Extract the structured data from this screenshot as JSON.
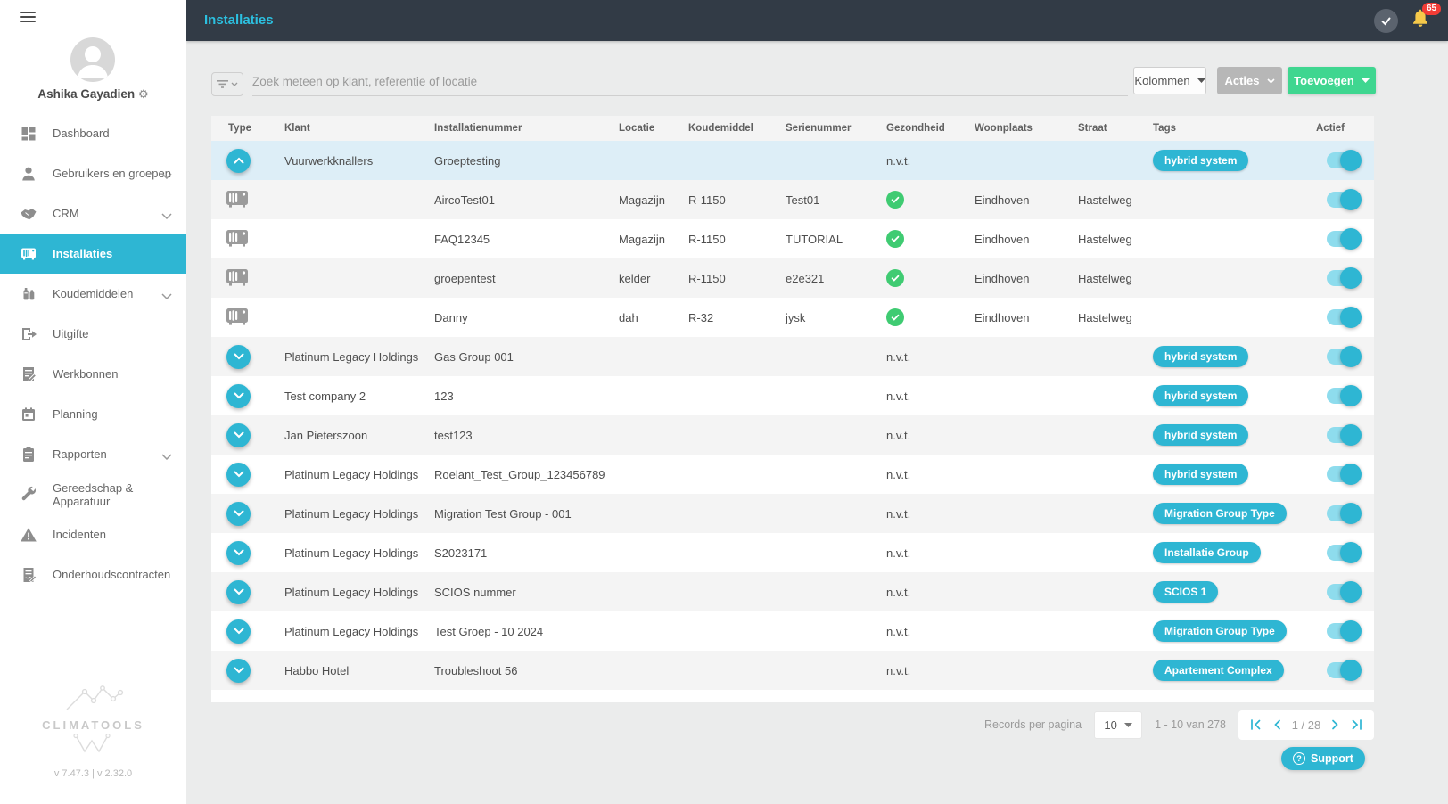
{
  "app": {
    "title": "Installaties",
    "notification_count": "65",
    "user": {
      "name": "Ashika Gayadien"
    },
    "logo_text": "CLIMATOOLS",
    "versions": "v 7.47.3   | v 2.32.0"
  },
  "sidebar": {
    "items": [
      {
        "label": "Dashboard",
        "icon": "dashboard-icon",
        "chevron": false,
        "active": false
      },
      {
        "label": "Gebruikers en groepen",
        "icon": "users-icon",
        "chevron": true,
        "active": false
      },
      {
        "label": "CRM",
        "icon": "handshake-icon",
        "chevron": true,
        "active": false
      },
      {
        "label": "Installaties",
        "icon": "ac-unit-icon",
        "chevron": false,
        "active": true
      },
      {
        "label": "Koudemiddelen",
        "icon": "refrigerant-bottles-icon",
        "chevron": true,
        "active": false
      },
      {
        "label": "Uitgifte",
        "icon": "export-icon",
        "chevron": false,
        "active": false
      },
      {
        "label": "Werkbonnen",
        "icon": "work-order-icon",
        "chevron": false,
        "active": false
      },
      {
        "label": "Planning",
        "icon": "calendar-icon",
        "chevron": false,
        "active": false
      },
      {
        "label": "Rapporten",
        "icon": "report-icon",
        "chevron": true,
        "active": false
      },
      {
        "label": "Gereedschap & Apparatuur",
        "icon": "wrench-icon",
        "chevron": false,
        "active": false
      },
      {
        "label": "Incidenten",
        "icon": "warning-icon",
        "chevron": false,
        "active": false
      },
      {
        "label": "Onderhoudscontracten",
        "icon": "contract-icon",
        "chevron": false,
        "active": false
      }
    ]
  },
  "toolbar": {
    "search_placeholder": "Zoek meteen op klant, referentie of locatie",
    "kolommen_label": "Kolommen",
    "acties_label": "Acties",
    "toevoegen_label": "Toevoegen"
  },
  "table": {
    "columns": [
      "Type",
      "Klant",
      "Installatienummer",
      "Locatie",
      "Koudemiddel",
      "Serienummer",
      "Gezondheid",
      "Woonplaats",
      "Straat",
      "Tags",
      "Actief"
    ],
    "rows": [
      {
        "type": "group-expanded",
        "klant": "Vuurwerkknallers",
        "installatienummer": "Groeptesting",
        "locatie": "",
        "koudemiddel": "",
        "serienummer": "",
        "gezondheid": "n.v.t.",
        "woonplaats": "",
        "straat": "",
        "tags": [
          "hybrid system"
        ],
        "actief": true,
        "highlight": true
      },
      {
        "type": "unit",
        "klant": "",
        "installatienummer": "AircoTest01",
        "locatie": "Magazijn",
        "koudemiddel": "R-1150",
        "serienummer": "Test01",
        "gezondheid": "ok",
        "woonplaats": "Eindhoven",
        "straat": "Hastelweg",
        "tags": [],
        "actief": true
      },
      {
        "type": "unit",
        "klant": "",
        "installatienummer": "FAQ12345",
        "locatie": "Magazijn",
        "koudemiddel": "R-1150",
        "serienummer": "TUTORIAL",
        "gezondheid": "ok",
        "woonplaats": "Eindhoven",
        "straat": "Hastelweg",
        "tags": [],
        "actief": true
      },
      {
        "type": "unit",
        "klant": "",
        "installatienummer": "groepentest",
        "locatie": "kelder",
        "koudemiddel": "R-1150",
        "serienummer": "e2e321",
        "gezondheid": "ok",
        "woonplaats": "Eindhoven",
        "straat": "Hastelweg",
        "tags": [],
        "actief": true
      },
      {
        "type": "unit",
        "klant": "",
        "installatienummer": "Danny",
        "locatie": "dah",
        "koudemiddel": "R-32",
        "serienummer": "jysk",
        "gezondheid": "ok",
        "woonplaats": "Eindhoven",
        "straat": "Hastelweg",
        "tags": [],
        "actief": true
      },
      {
        "type": "group-collapsed",
        "klant": "Platinum Legacy Holdings",
        "installatienummer": "Gas Group 001",
        "locatie": "",
        "koudemiddel": "",
        "serienummer": "",
        "gezondheid": "n.v.t.",
        "woonplaats": "",
        "straat": "",
        "tags": [
          "hybrid system"
        ],
        "actief": true
      },
      {
        "type": "group-collapsed",
        "klant": "Test company 2",
        "installatienummer": "123",
        "locatie": "",
        "koudemiddel": "",
        "serienummer": "",
        "gezondheid": "n.v.t.",
        "woonplaats": "",
        "straat": "",
        "tags": [
          "hybrid system"
        ],
        "actief": true
      },
      {
        "type": "group-collapsed",
        "klant": "Jan Pieterszoon",
        "installatienummer": "test123",
        "locatie": "",
        "koudemiddel": "",
        "serienummer": "",
        "gezondheid": "n.v.t.",
        "woonplaats": "",
        "straat": "",
        "tags": [
          "hybrid system"
        ],
        "actief": true
      },
      {
        "type": "group-collapsed",
        "klant": "Platinum Legacy Holdings",
        "installatienummer": "Roelant_Test_Group_123456789",
        "locatie": "",
        "koudemiddel": "",
        "serienummer": "",
        "gezondheid": "n.v.t.",
        "woonplaats": "",
        "straat": "",
        "tags": [
          "hybrid system"
        ],
        "actief": true
      },
      {
        "type": "group-collapsed",
        "klant": "Platinum Legacy Holdings",
        "installatienummer": "Migration Test Group - 001",
        "locatie": "",
        "koudemiddel": "",
        "serienummer": "",
        "gezondheid": "n.v.t.",
        "woonplaats": "",
        "straat": "",
        "tags": [
          "Migration Group Type"
        ],
        "actief": true
      },
      {
        "type": "group-collapsed",
        "klant": "Platinum Legacy Holdings",
        "installatienummer": "S2023171",
        "locatie": "",
        "koudemiddel": "",
        "serienummer": "",
        "gezondheid": "n.v.t.",
        "woonplaats": "",
        "straat": "",
        "tags": [
          "Installatie Group"
        ],
        "actief": true
      },
      {
        "type": "group-collapsed",
        "klant": "Platinum Legacy Holdings",
        "installatienummer": "SCIOS nummer",
        "locatie": "",
        "koudemiddel": "",
        "serienummer": "",
        "gezondheid": "n.v.t.",
        "woonplaats": "",
        "straat": "",
        "tags": [
          "SCIOS 1"
        ],
        "actief": true
      },
      {
        "type": "group-collapsed",
        "klant": "Platinum Legacy Holdings",
        "installatienummer": "Test Groep - 10 2024",
        "locatie": "",
        "koudemiddel": "",
        "serienummer": "",
        "gezondheid": "n.v.t.",
        "woonplaats": "",
        "straat": "",
        "tags": [
          "Migration Group Type"
        ],
        "actief": true
      },
      {
        "type": "group-collapsed",
        "klant": "Habbo Hotel",
        "installatienummer": "Troubleshoot 56",
        "locatie": "",
        "koudemiddel": "",
        "serienummer": "",
        "gezondheid": "n.v.t.",
        "woonplaats": "",
        "straat": "",
        "tags": [
          "Apartement Complex"
        ],
        "actief": true
      }
    ]
  },
  "pagination": {
    "records_label": "Records per pagina",
    "page_size": "10",
    "range_text": "1 - 10 van 278",
    "page_text": "1 / 28"
  },
  "support": {
    "label": "Support"
  },
  "colors": {
    "accent_cyan": "#2eb6d3",
    "title_cyan": "#2cc0e0",
    "topbar_dark": "#323b46",
    "health_green": "#3fcb72",
    "add_button_green": "#3fd690",
    "badge_red": "#f23c36",
    "bell_yellow": "#f6c94a",
    "row_highlight_blue": "#ddeef7",
    "row_stripe_gray": "#f4f4f4"
  }
}
